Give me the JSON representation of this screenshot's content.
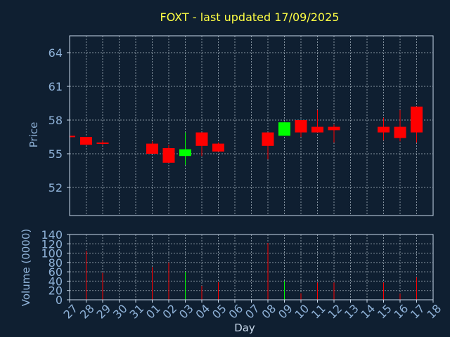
{
  "chart_data": {
    "type": "candlestick",
    "title": "FOXT - last updated 17/09/2025",
    "xlabel": "Day",
    "price": {
      "ylabel": "Price",
      "ylim": [
        49.5,
        65.5
      ],
      "yticks": [
        52,
        55,
        58,
        61,
        64
      ]
    },
    "volume": {
      "ylabel": "Volume (0000)",
      "ylim": [
        0,
        140
      ],
      "yticks": [
        0,
        20,
        40,
        60,
        80,
        100,
        120,
        140
      ]
    },
    "x_tick_labels": [
      "27",
      "28",
      "29",
      "30",
      "31",
      "01",
      "02",
      "03",
      "04",
      "05",
      "06",
      "07",
      "08",
      "09",
      "10",
      "11",
      "12",
      "13",
      "14",
      "15",
      "16",
      "17",
      "18"
    ],
    "candles": [
      {
        "day": "27",
        "open": 56.6,
        "high": 56.6,
        "low": 56.5,
        "close": 56.5,
        "volume": 0
      },
      {
        "day": "28",
        "open": 56.5,
        "high": 56.5,
        "low": 55.8,
        "close": 55.8,
        "volume": 105
      },
      {
        "day": "29",
        "open": 56.0,
        "high": 56.2,
        "low": 55.8,
        "close": 55.9,
        "volume": 58
      },
      {
        "day": "01",
        "open": 55.9,
        "high": 56.1,
        "low": 55.0,
        "close": 55.0,
        "volume": 70
      },
      {
        "day": "02",
        "open": 55.5,
        "high": 55.8,
        "low": 54.2,
        "close": 54.2,
        "volume": 80
      },
      {
        "day": "03",
        "open": 54.8,
        "high": 56.9,
        "low": 54.0,
        "close": 55.4,
        "volume": 60
      },
      {
        "day": "04",
        "open": 56.9,
        "high": 56.9,
        "low": 54.8,
        "close": 55.7,
        "volume": 30
      },
      {
        "day": "05",
        "open": 55.9,
        "high": 56.0,
        "low": 55.2,
        "close": 55.2,
        "volume": 38
      },
      {
        "day": "08",
        "open": 56.9,
        "high": 56.9,
        "low": 54.5,
        "close": 55.7,
        "volume": 122
      },
      {
        "day": "09",
        "open": 56.6,
        "high": 57.8,
        "low": 56.6,
        "close": 57.8,
        "volume": 40
      },
      {
        "day": "10",
        "open": 58.0,
        "high": 58.0,
        "low": 56.5,
        "close": 56.9,
        "volume": 14
      },
      {
        "day": "11",
        "open": 57.4,
        "high": 58.9,
        "low": 56.9,
        "close": 56.9,
        "volume": 37
      },
      {
        "day": "12",
        "open": 57.4,
        "high": 57.6,
        "low": 56.0,
        "close": 57.1,
        "volume": 37
      },
      {
        "day": "15",
        "open": 57.4,
        "high": 58.2,
        "low": 56.2,
        "close": 56.9,
        "volume": 37
      },
      {
        "day": "16",
        "open": 57.4,
        "high": 58.9,
        "low": 56.1,
        "close": 56.4,
        "volume": 13
      },
      {
        "day": "17",
        "open": 59.2,
        "high": 59.2,
        "low": 56.0,
        "close": 56.9,
        "volume": 48
      }
    ],
    "colors": {
      "background": "#0f1f31",
      "up": "#00ff00",
      "down": "#ff0000",
      "grid": "#b8c4d0",
      "axis": "#c8d8ea",
      "title": "#ffff44",
      "tick": "#8fb2d8"
    },
    "grid": true
  }
}
